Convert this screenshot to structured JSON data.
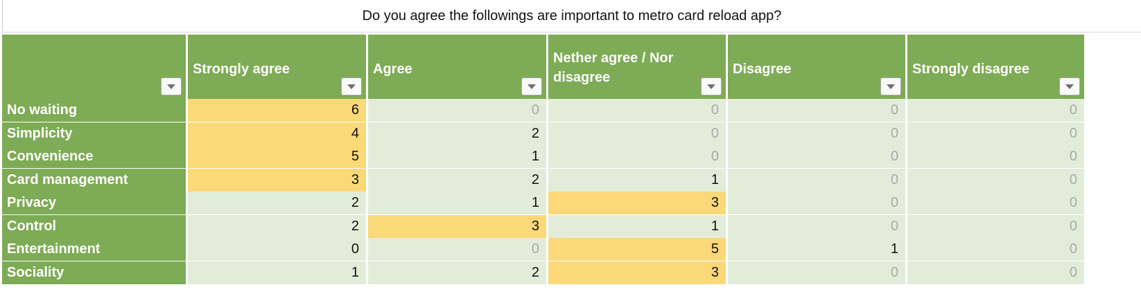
{
  "chart_data": {
    "type": "table",
    "title": "Do you agree the followings are important to metro card reload app?",
    "columns": [
      "Strongly agree",
      "Agree",
      "Nether agree / Nor disagree",
      "Disagree",
      "Strongly disagree"
    ],
    "rows": [
      {
        "label": "No waiting",
        "values": [
          6,
          0,
          0,
          0,
          0
        ]
      },
      {
        "label": "Simplicity",
        "values": [
          4,
          2,
          0,
          0,
          0
        ]
      },
      {
        "label": "Convenience",
        "values": [
          5,
          1,
          0,
          0,
          0
        ]
      },
      {
        "label": "Card management",
        "values": [
          3,
          2,
          1,
          0,
          0
        ]
      },
      {
        "label": "Privacy",
        "values": [
          2,
          1,
          3,
          0,
          0
        ]
      },
      {
        "label": "Control",
        "values": [
          2,
          3,
          1,
          0,
          0
        ]
      },
      {
        "label": "Entertainment",
        "values": [
          0,
          0,
          5,
          1,
          0
        ]
      },
      {
        "label": "Sociality",
        "values": [
          1,
          2,
          3,
          0,
          0
        ]
      }
    ]
  },
  "colors": {
    "header_green": "#7eab55",
    "cell_light_green": "#e2edd9",
    "highlight_yellow": "#fbd878",
    "zero_gray": "#a9a9a9"
  },
  "icons": {
    "filter_dropdown": "chevron-down-icon"
  }
}
